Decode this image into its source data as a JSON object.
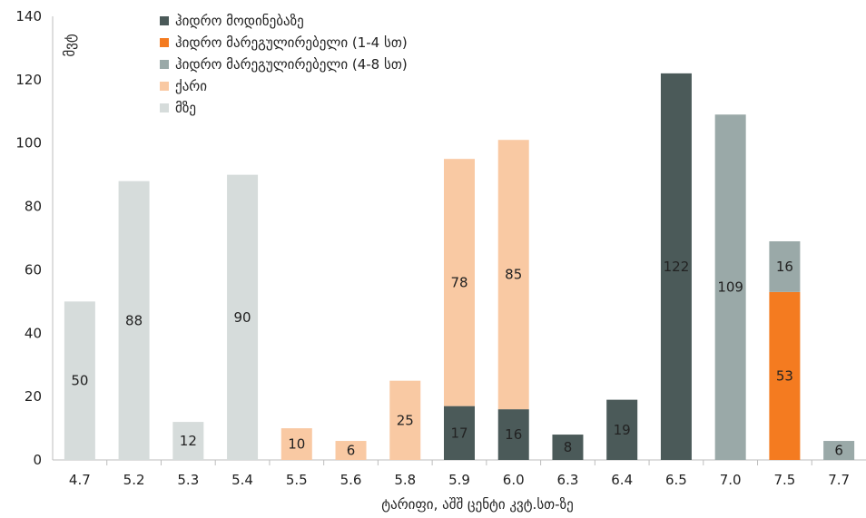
{
  "chart_data": {
    "type": "bar",
    "stacked": true,
    "xlabel": "ტარიფი, აშშ ცენტი კვტ.სთ-ზე",
    "ylabel": "მვტ",
    "ylim": [
      0,
      140
    ],
    "yticks": [
      0,
      20,
      40,
      60,
      80,
      100,
      120,
      140
    ],
    "categories": [
      "4.7",
      "5.2",
      "5.3",
      "5.4",
      "5.5",
      "5.6",
      "5.8",
      "5.9",
      "6.0",
      "6.3",
      "6.4",
      "6.5",
      "7.0",
      "7.5",
      "7.7"
    ],
    "series": [
      {
        "name": "ჰიდრო მოდინებაზე",
        "color": "#4b5a59",
        "values": [
          0,
          0,
          0,
          0,
          0,
          0,
          0,
          17,
          16,
          8,
          19,
          122,
          0,
          0,
          0
        ]
      },
      {
        "name": "ჰიდრო მარეგულირებელი (1-4 სთ)",
        "color": "#f47b20",
        "values": [
          0,
          0,
          0,
          0,
          0,
          0,
          0,
          0,
          0,
          0,
          0,
          0,
          0,
          53,
          0
        ]
      },
      {
        "name": "ჰიდრო მარეგულირებელი (4-8 სთ)",
        "color": "#9aa9a8",
        "values": [
          0,
          0,
          0,
          0,
          0,
          0,
          0,
          0,
          0,
          0,
          0,
          0,
          109,
          16,
          6
        ]
      },
      {
        "name": "ქარი",
        "color": "#f9c9a3",
        "values": [
          0,
          0,
          0,
          0,
          10,
          6,
          25,
          78,
          85,
          0,
          0,
          0,
          0,
          0,
          0
        ]
      },
      {
        "name": "მზე",
        "color": "#d6dcdb",
        "values": [
          50,
          88,
          12,
          90,
          0,
          0,
          0,
          0,
          0,
          0,
          0,
          0,
          0,
          0,
          0
        ]
      }
    ],
    "legend": "top-left",
    "grid": false
  }
}
